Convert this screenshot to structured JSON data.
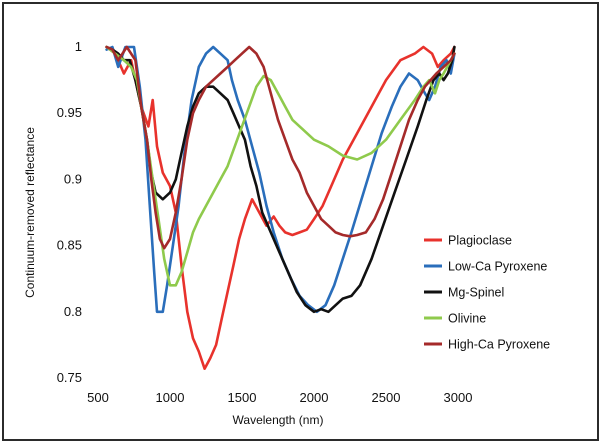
{
  "chart_data": {
    "type": "line",
    "title": "",
    "xlabel": "Wavelength (nm)",
    "ylabel": "Continuum-removed reflectance",
    "xlim": [
      500,
      3000
    ],
    "ylim": [
      0.75,
      1.0
    ],
    "xticks": [
      500,
      1000,
      1500,
      2000,
      2500,
      3000
    ],
    "yticks": [
      0.75,
      0.8,
      0.85,
      0.9,
      0.95,
      1
    ],
    "ytick_labels": [
      "0.75",
      "0.8",
      "0.85",
      "0.9",
      "0.95",
      "1"
    ],
    "grid": false,
    "legend_position": "right",
    "series": [
      {
        "name": "Plagioclase",
        "color": "#e8322c",
        "points": [
          [
            560,
            1.0
          ],
          [
            620,
            0.995
          ],
          [
            680,
            0.98
          ],
          [
            730,
            0.99
          ],
          [
            760,
            0.975
          ],
          [
            800,
            0.955
          ],
          [
            850,
            0.94
          ],
          [
            880,
            0.96
          ],
          [
            910,
            0.925
          ],
          [
            950,
            0.905
          ],
          [
            1000,
            0.895
          ],
          [
            1040,
            0.875
          ],
          [
            1080,
            0.835
          ],
          [
            1120,
            0.8
          ],
          [
            1160,
            0.78
          ],
          [
            1200,
            0.77
          ],
          [
            1240,
            0.757
          ],
          [
            1280,
            0.765
          ],
          [
            1320,
            0.775
          ],
          [
            1360,
            0.795
          ],
          [
            1400,
            0.815
          ],
          [
            1440,
            0.835
          ],
          [
            1480,
            0.855
          ],
          [
            1520,
            0.87
          ],
          [
            1570,
            0.885
          ],
          [
            1620,
            0.875
          ],
          [
            1670,
            0.865
          ],
          [
            1720,
            0.872
          ],
          [
            1760,
            0.865
          ],
          [
            1800,
            0.86
          ],
          [
            1850,
            0.858
          ],
          [
            1900,
            0.86
          ],
          [
            1950,
            0.862
          ],
          [
            2000,
            0.87
          ],
          [
            2060,
            0.88
          ],
          [
            2120,
            0.895
          ],
          [
            2200,
            0.915
          ],
          [
            2300,
            0.935
          ],
          [
            2400,
            0.955
          ],
          [
            2500,
            0.975
          ],
          [
            2600,
            0.99
          ],
          [
            2700,
            0.995
          ],
          [
            2760,
            1.0
          ],
          [
            2820,
            0.995
          ],
          [
            2860,
            0.985
          ],
          [
            2900,
            0.99
          ],
          [
            2950,
            0.995
          ],
          [
            2975,
            1.0
          ]
        ]
      },
      {
        "name": "Low-Ca Pyroxene",
        "color": "#2a6ebb",
        "points": [
          [
            560,
            0.998
          ],
          [
            600,
            1.0
          ],
          [
            640,
            0.985
          ],
          [
            690,
            1.0
          ],
          [
            750,
            1.0
          ],
          [
            790,
            0.97
          ],
          [
            830,
            0.93
          ],
          [
            860,
            0.88
          ],
          [
            890,
            0.83
          ],
          [
            910,
            0.8
          ],
          [
            950,
            0.8
          ],
          [
            980,
            0.82
          ],
          [
            1020,
            0.85
          ],
          [
            1060,
            0.88
          ],
          [
            1100,
            0.92
          ],
          [
            1150,
            0.96
          ],
          [
            1200,
            0.985
          ],
          [
            1250,
            0.995
          ],
          [
            1300,
            1.0
          ],
          [
            1350,
            0.995
          ],
          [
            1400,
            0.99
          ],
          [
            1430,
            0.975
          ],
          [
            1470,
            0.96
          ],
          [
            1520,
            0.945
          ],
          [
            1570,
            0.925
          ],
          [
            1620,
            0.905
          ],
          [
            1670,
            0.88
          ],
          [
            1720,
            0.86
          ],
          [
            1780,
            0.84
          ],
          [
            1840,
            0.825
          ],
          [
            1900,
            0.812
          ],
          [
            1960,
            0.805
          ],
          [
            2020,
            0.8
          ],
          [
            2080,
            0.805
          ],
          [
            2140,
            0.82
          ],
          [
            2200,
            0.84
          ],
          [
            2260,
            0.86
          ],
          [
            2330,
            0.885
          ],
          [
            2400,
            0.91
          ],
          [
            2470,
            0.935
          ],
          [
            2540,
            0.955
          ],
          [
            2600,
            0.97
          ],
          [
            2660,
            0.98
          ],
          [
            2720,
            0.975
          ],
          [
            2770,
            0.965
          ],
          [
            2800,
            0.96
          ],
          [
            2840,
            0.97
          ],
          [
            2880,
            0.985
          ],
          [
            2920,
            0.99
          ],
          [
            2950,
            0.98
          ],
          [
            2975,
            0.995
          ]
        ]
      },
      {
        "name": "Mg-Spinel",
        "color": "#111111",
        "points": [
          [
            560,
            1.0
          ],
          [
            600,
            0.998
          ],
          [
            640,
            0.995
          ],
          [
            680,
            0.99
          ],
          [
            720,
            0.99
          ],
          [
            760,
            0.975
          ],
          [
            800,
            0.955
          ],
          [
            840,
            0.93
          ],
          [
            870,
            0.905
          ],
          [
            900,
            0.89
          ],
          [
            950,
            0.885
          ],
          [
            1000,
            0.89
          ],
          [
            1040,
            0.9
          ],
          [
            1080,
            0.92
          ],
          [
            1120,
            0.94
          ],
          [
            1160,
            0.955
          ],
          [
            1200,
            0.965
          ],
          [
            1250,
            0.97
          ],
          [
            1300,
            0.97
          ],
          [
            1350,
            0.965
          ],
          [
            1400,
            0.96
          ],
          [
            1440,
            0.95
          ],
          [
            1480,
            0.94
          ],
          [
            1520,
            0.93
          ],
          [
            1560,
            0.91
          ],
          [
            1600,
            0.895
          ],
          [
            1640,
            0.875
          ],
          [
            1700,
            0.86
          ],
          [
            1760,
            0.845
          ],
          [
            1820,
            0.83
          ],
          [
            1880,
            0.815
          ],
          [
            1940,
            0.805
          ],
          [
            2000,
            0.8
          ],
          [
            2050,
            0.802
          ],
          [
            2100,
            0.8
          ],
          [
            2150,
            0.805
          ],
          [
            2200,
            0.81
          ],
          [
            2260,
            0.812
          ],
          [
            2320,
            0.82
          ],
          [
            2400,
            0.84
          ],
          [
            2480,
            0.865
          ],
          [
            2560,
            0.89
          ],
          [
            2640,
            0.915
          ],
          [
            2720,
            0.94
          ],
          [
            2780,
            0.96
          ],
          [
            2830,
            0.975
          ],
          [
            2870,
            0.98
          ],
          [
            2900,
            0.975
          ],
          [
            2930,
            0.98
          ],
          [
            2960,
            0.99
          ],
          [
            2975,
            1.0
          ]
        ]
      },
      {
        "name": "Olivine",
        "color": "#8fca4c",
        "points": [
          [
            560,
            1.0
          ],
          [
            620,
            0.995
          ],
          [
            680,
            0.99
          ],
          [
            730,
            0.985
          ],
          [
            770,
            0.975
          ],
          [
            800,
            0.955
          ],
          [
            840,
            0.93
          ],
          [
            880,
            0.9
          ],
          [
            920,
            0.87
          ],
          [
            960,
            0.84
          ],
          [
            1000,
            0.82
          ],
          [
            1040,
            0.82
          ],
          [
            1080,
            0.83
          ],
          [
            1120,
            0.845
          ],
          [
            1160,
            0.86
          ],
          [
            1200,
            0.87
          ],
          [
            1250,
            0.88
          ],
          [
            1300,
            0.89
          ],
          [
            1350,
            0.9
          ],
          [
            1400,
            0.91
          ],
          [
            1450,
            0.925
          ],
          [
            1500,
            0.94
          ],
          [
            1550,
            0.955
          ],
          [
            1600,
            0.97
          ],
          [
            1650,
            0.978
          ],
          [
            1700,
            0.975
          ],
          [
            1750,
            0.965
          ],
          [
            1800,
            0.955
          ],
          [
            1850,
            0.945
          ],
          [
            1900,
            0.94
          ],
          [
            1950,
            0.935
          ],
          [
            2000,
            0.93
          ],
          [
            2100,
            0.925
          ],
          [
            2200,
            0.918
          ],
          [
            2300,
            0.915
          ],
          [
            2400,
            0.92
          ],
          [
            2500,
            0.93
          ],
          [
            2600,
            0.945
          ],
          [
            2700,
            0.96
          ],
          [
            2760,
            0.97
          ],
          [
            2800,
            0.975
          ],
          [
            2840,
            0.965
          ],
          [
            2870,
            0.975
          ],
          [
            2900,
            0.98
          ],
          [
            2950,
            0.99
          ],
          [
            2975,
            0.995
          ]
        ]
      },
      {
        "name": "High-Ca Pyroxene",
        "color": "#a52a2a",
        "points": [
          [
            560,
            1.0
          ],
          [
            600,
            0.998
          ],
          [
            640,
            0.99
          ],
          [
            700,
            1.0
          ],
          [
            760,
            0.99
          ],
          [
            800,
            0.955
          ],
          [
            840,
            0.93
          ],
          [
            870,
            0.9
          ],
          [
            900,
            0.875
          ],
          [
            930,
            0.855
          ],
          [
            960,
            0.848
          ],
          [
            1000,
            0.855
          ],
          [
            1040,
            0.875
          ],
          [
            1080,
            0.9
          ],
          [
            1120,
            0.93
          ],
          [
            1160,
            0.95
          ],
          [
            1200,
            0.96
          ],
          [
            1250,
            0.97
          ],
          [
            1300,
            0.975
          ],
          [
            1350,
            0.98
          ],
          [
            1400,
            0.985
          ],
          [
            1450,
            0.99
          ],
          [
            1500,
            0.995
          ],
          [
            1550,
            1.0
          ],
          [
            1600,
            0.995
          ],
          [
            1650,
            0.985
          ],
          [
            1700,
            0.965
          ],
          [
            1750,
            0.945
          ],
          [
            1800,
            0.93
          ],
          [
            1850,
            0.915
          ],
          [
            1900,
            0.905
          ],
          [
            1950,
            0.89
          ],
          [
            2000,
            0.88
          ],
          [
            2050,
            0.87
          ],
          [
            2100,
            0.865
          ],
          [
            2150,
            0.86
          ],
          [
            2200,
            0.858
          ],
          [
            2250,
            0.857
          ],
          [
            2300,
            0.858
          ],
          [
            2360,
            0.86
          ],
          [
            2420,
            0.87
          ],
          [
            2480,
            0.885
          ],
          [
            2540,
            0.905
          ],
          [
            2600,
            0.925
          ],
          [
            2660,
            0.945
          ],
          [
            2720,
            0.96
          ],
          [
            2770,
            0.97
          ],
          [
            2810,
            0.975
          ],
          [
            2850,
            0.98
          ],
          [
            2900,
            0.985
          ],
          [
            2950,
            0.99
          ],
          [
            2975,
            0.995
          ]
        ]
      }
    ]
  }
}
